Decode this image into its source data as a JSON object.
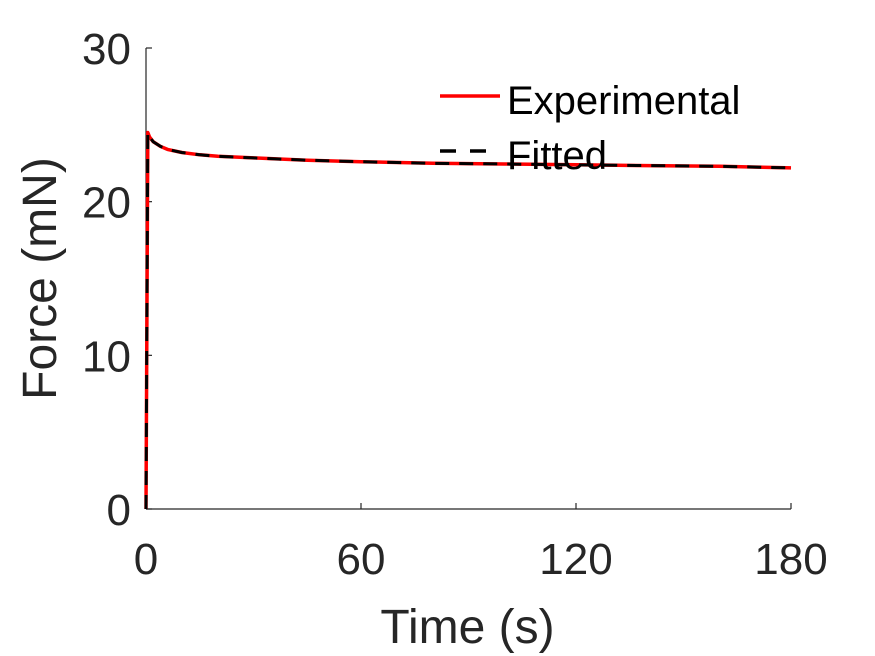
{
  "chart_data": {
    "type": "line",
    "title": "",
    "xlabel": "Time (s)",
    "ylabel": "Force (mN)",
    "xlim": [
      0,
      180
    ],
    "ylim": [
      0,
      30
    ],
    "xticks": [
      0,
      60,
      120,
      180
    ],
    "yticks": [
      0,
      10,
      20,
      30
    ],
    "x_tick_labels": [
      "0",
      "60",
      "120",
      "180"
    ],
    "y_tick_labels": [
      "0",
      "10",
      "20",
      "30"
    ],
    "grid": false,
    "legend_position": "top-right",
    "series": [
      {
        "name": "Experimental",
        "color": "#ff0000",
        "style": "solid",
        "x": [
          0,
          0.5,
          1,
          2,
          4,
          6,
          10,
          15,
          20,
          30,
          45,
          60,
          80,
          100,
          120,
          140,
          160,
          180
        ],
        "y": [
          0,
          24.5,
          24.2,
          23.9,
          23.6,
          23.4,
          23.2,
          23.05,
          22.95,
          22.85,
          22.7,
          22.6,
          22.5,
          22.45,
          22.4,
          22.35,
          22.3,
          22.2
        ]
      },
      {
        "name": "Fitted",
        "color": "#000000",
        "style": "dashed",
        "x": [
          0,
          0.5,
          1,
          2,
          4,
          6,
          10,
          15,
          20,
          30,
          45,
          60,
          80,
          100,
          120,
          140,
          160,
          180
        ],
        "y": [
          0,
          24.5,
          24.2,
          23.9,
          23.6,
          23.4,
          23.2,
          23.05,
          22.95,
          22.85,
          22.7,
          22.6,
          22.5,
          22.45,
          22.4,
          22.35,
          22.3,
          22.2
        ]
      }
    ]
  }
}
